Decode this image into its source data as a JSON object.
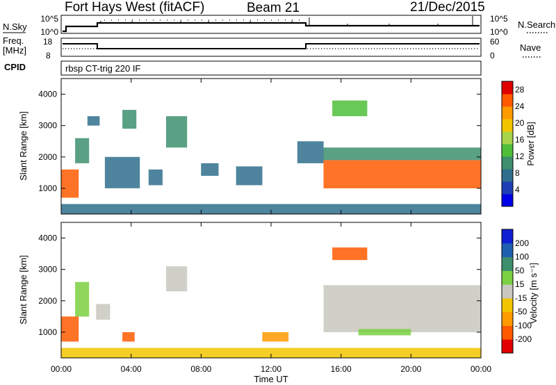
{
  "header": {
    "station": "Fort Hays West (fitACF)",
    "beam": "Beam 21",
    "date": "21/Dec/2015"
  },
  "top_panels": {
    "nsky_label": "N.Sky",
    "nsearch_label": "N.Search",
    "nsky_ticks": [
      "10^5",
      "10^0"
    ],
    "nsearch_ticks": [
      "10^5",
      "10^0"
    ],
    "freq_label_line1": "Freq.",
    "freq_label_line2": "[MHz]",
    "freq_ticks": [
      "18",
      "8"
    ],
    "nave_label": "Nave",
    "nave_ticks": [
      "60",
      "0"
    ],
    "cpid_label": "CPID",
    "cpid_text": "rbsp CT-trig 220 IF"
  },
  "colors": {
    "power_scale": [
      "#0000e6",
      "#1e3fb4",
      "#2f6e8c",
      "#3d8f6e",
      "#4fbf3a",
      "#a8d34a",
      "#f2c400",
      "#ff9a00",
      "#ff5a00",
      "#e00000"
    ],
    "velocity_scale": [
      "#e00000",
      "#ff5a00",
      "#ff9a00",
      "#f2c400",
      "#c8c8c0",
      "#7ad040",
      "#3d8f6e",
      "#2060b0",
      "#1020d0"
    ],
    "ground_scatter": "#c8c8c0"
  },
  "chart_data": [
    {
      "type": "heatmap",
      "panel": "power",
      "xlabel": "Time UT",
      "ylabel": "Slant Range [km]",
      "xlim": [
        0,
        24
      ],
      "ylim": [
        180,
        4500
      ],
      "x_ticks": [
        "00:00",
        "04:00",
        "08:00",
        "12:00",
        "16:00",
        "20:00",
        "00:00"
      ],
      "y_ticks": [
        "1000",
        "2000",
        "3000",
        "4000"
      ],
      "y_tick_values": [
        1000,
        2000,
        3000,
        4000
      ],
      "colorbar_label": "Power [dB]",
      "colorbar_ticks": [
        "4",
        "8",
        "12",
        "16",
        "20",
        "24",
        "28"
      ],
      "colorbar_range": [
        0,
        30
      ],
      "regions": [
        {
          "t0": 0.0,
          "t1": 1.0,
          "r0": 700,
          "r1": 1600,
          "value": 24
        },
        {
          "t0": 0.8,
          "t1": 1.6,
          "r0": 1800,
          "r1": 2600,
          "value": 10
        },
        {
          "t0": 1.5,
          "t1": 2.2,
          "r0": 3000,
          "r1": 3300,
          "value": 6
        },
        {
          "t0": 2.5,
          "t1": 4.5,
          "r0": 1000,
          "r1": 2000,
          "value": 8
        },
        {
          "t0": 3.5,
          "t1": 4.3,
          "r0": 2900,
          "r1": 3500,
          "value": 9
        },
        {
          "t0": 5.0,
          "t1": 5.8,
          "r0": 1100,
          "r1": 1600,
          "value": 7
        },
        {
          "t0": 6.0,
          "t1": 7.2,
          "r0": 2300,
          "r1": 3300,
          "value": 10
        },
        {
          "t0": 8.0,
          "t1": 9.0,
          "r0": 1400,
          "r1": 1800,
          "value": 6
        },
        {
          "t0": 10.0,
          "t1": 11.5,
          "r0": 1100,
          "r1": 1700,
          "value": 7
        },
        {
          "t0": 13.5,
          "t1": 15.0,
          "r0": 1800,
          "r1": 2500,
          "value": 8
        },
        {
          "t0": 15.5,
          "t1": 17.5,
          "r0": 3300,
          "r1": 3800,
          "value": 14
        },
        {
          "t0": 15.0,
          "t1": 24.0,
          "r0": 1000,
          "r1": 1900,
          "value": 26
        },
        {
          "t0": 15.0,
          "t1": 24.0,
          "r0": 1900,
          "r1": 2300,
          "value": 10
        },
        {
          "t0": 0.0,
          "t1": 24.0,
          "r0": 180,
          "r1": 500,
          "value": 8
        }
      ]
    },
    {
      "type": "heatmap",
      "panel": "velocity",
      "xlabel": "Time UT",
      "ylabel": "Slant Range [km]",
      "xlim": [
        0,
        24
      ],
      "ylim": [
        180,
        4500
      ],
      "x_ticks": [
        "00:00",
        "04:00",
        "08:00",
        "12:00",
        "16:00",
        "20:00",
        "00:00"
      ],
      "y_ticks": [
        "1000",
        "2000",
        "3000",
        "4000"
      ],
      "y_tick_values": [
        1000,
        2000,
        3000,
        4000
      ],
      "colorbar_label": "Velocity [m s⁻¹]",
      "colorbar_ticks": [
        "-200",
        "-100",
        "-50",
        "-15",
        "15",
        "50",
        "100",
        "200"
      ],
      "regions": [
        {
          "t0": 0.0,
          "t1": 1.0,
          "r0": 700,
          "r1": 1500,
          "value": -150
        },
        {
          "t0": 0.8,
          "t1": 1.6,
          "r0": 1500,
          "r1": 2600,
          "value": 40
        },
        {
          "t0": 2.0,
          "t1": 2.8,
          "r0": 1400,
          "r1": 1900,
          "value": -15
        },
        {
          "t0": 3.5,
          "t1": 4.2,
          "r0": 700,
          "r1": 1000,
          "value": -150
        },
        {
          "t0": 6.0,
          "t1": 7.2,
          "r0": 2300,
          "r1": 3100,
          "value": 0
        },
        {
          "t0": 11.5,
          "t1": 13.0,
          "r0": 700,
          "r1": 1000,
          "value": -60
        },
        {
          "t0": 15.5,
          "t1": 17.5,
          "r0": 3300,
          "r1": 3700,
          "value": -160
        },
        {
          "t0": 15.0,
          "t1": 24.0,
          "r0": 1000,
          "r1": 2500,
          "value": 0
        },
        {
          "t0": 17.0,
          "t1": 20.0,
          "r0": 900,
          "r1": 1100,
          "value": 40
        },
        {
          "t0": 0.0,
          "t1": 24.0,
          "r0": 180,
          "r1": 500,
          "value": -40
        }
      ]
    }
  ]
}
